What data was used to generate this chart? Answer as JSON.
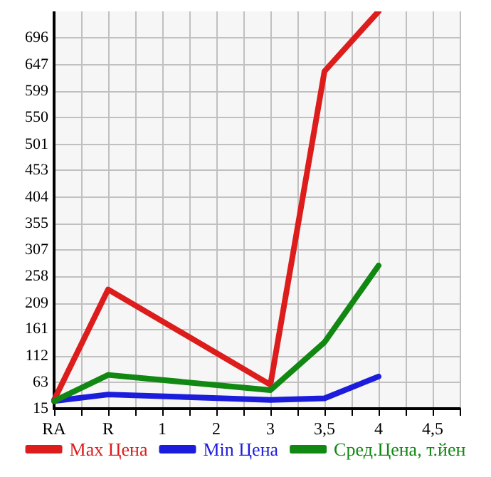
{
  "chart_data": {
    "type": "line",
    "categories": [
      "RA",
      null,
      "R",
      null,
      "1",
      null,
      "2",
      null,
      "3",
      null,
      "3,5",
      null,
      "4",
      null,
      "4,5",
      null
    ],
    "series": [
      {
        "name": "Max Цена",
        "color": "#dd1c1c",
        "values": [
          31,
          null,
          234,
          null,
          null,
          null,
          null,
          null,
          59,
          null,
          635,
          null,
          745,
          null,
          null,
          null
        ]
      },
      {
        "name": "Min Цена",
        "color": "#1c1cdd",
        "values": [
          29,
          null,
          41,
          null,
          null,
          null,
          null,
          null,
          31,
          null,
          34,
          null,
          74,
          null,
          null,
          null
        ]
      },
      {
        "name": "Сред.Цена, т.йен",
        "color": "#118811",
        "values": [
          29,
          null,
          77,
          null,
          null,
          null,
          null,
          null,
          49,
          null,
          137,
          null,
          278,
          null,
          null,
          null
        ]
      }
    ],
    "ylim": [
      15,
      745
    ],
    "yticks": [
      15,
      63,
      112,
      161,
      209,
      258,
      307,
      355,
      404,
      453,
      501,
      550,
      599,
      647,
      696
    ],
    "grid": true,
    "legend": "bottom",
    "marker": "none",
    "line_style": "solid"
  }
}
